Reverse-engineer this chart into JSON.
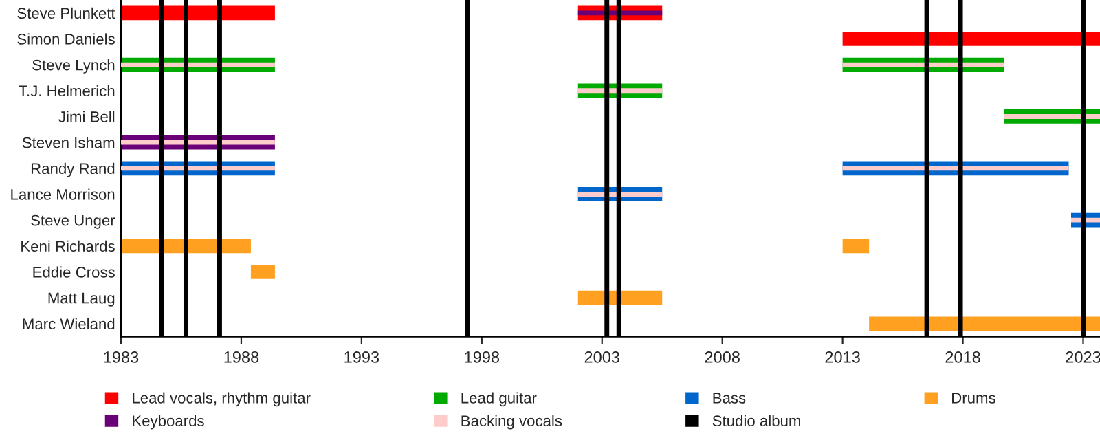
{
  "chart_data": {
    "type": "bar",
    "orientation": "horizontal",
    "categories": [
      "Steve Plunkett",
      "Simon Daniels",
      "Steve Lynch",
      "T.J. Helmerich",
      "Jimi Bell",
      "Steven Isham",
      "Randy Rand",
      "Lance Morrison",
      "Steve Unger",
      "Keni Richards",
      "Eddie Cross",
      "Matt Laug",
      "Marc Wieland"
    ],
    "series": [
      {
        "name": "Lead vocals, rhythm guitar",
        "color": "#ff0000",
        "base": [
          1983,
          2013,
          null,
          null,
          null,
          null,
          null,
          null,
          null,
          null,
          null,
          null,
          null
        ],
        "values": [
          6.4,
          10.7,
          null,
          null,
          null,
          null,
          null,
          null,
          null,
          null,
          null,
          null,
          null
        ]
      },
      {
        "color": "#ff0000",
        "base": [
          2002,
          null,
          null,
          null,
          null,
          null,
          null,
          null,
          null,
          null,
          null,
          null,
          null
        ],
        "values": [
          3.5,
          null,
          null,
          null,
          null,
          null,
          null,
          null,
          null,
          null,
          null,
          null,
          null
        ]
      },
      {
        "name": "Lead guitar",
        "color": "#00aa00",
        "base": [
          null,
          null,
          1983,
          2002,
          2019.7,
          null,
          null,
          null,
          null,
          null,
          null,
          null,
          null
        ],
        "values": [
          null,
          null,
          6.4,
          3.5,
          4.0,
          null,
          null,
          null,
          null,
          null,
          null,
          null,
          null
        ]
      },
      {
        "color": "#00aa00",
        "base": [
          null,
          null,
          2013,
          null,
          null,
          null,
          null,
          null,
          null,
          null,
          null,
          null,
          null
        ],
        "values": [
          null,
          null,
          6.7,
          null,
          null,
          null,
          null,
          null,
          null,
          null,
          null,
          null,
          null
        ]
      },
      {
        "name": "Bass",
        "color": "#0066cc",
        "base": [
          null,
          null,
          null,
          null,
          null,
          null,
          1983,
          2002,
          2022.5,
          null,
          null,
          null,
          null
        ],
        "values": [
          null,
          null,
          null,
          null,
          null,
          null,
          6.4,
          3.5,
          1.2,
          null,
          null,
          null,
          null
        ]
      },
      {
        "color": "#0066cc",
        "base": [
          null,
          null,
          null,
          null,
          null,
          null,
          2013,
          null,
          null,
          null,
          null,
          null,
          null
        ],
        "values": [
          null,
          null,
          null,
          null,
          null,
          null,
          9.4,
          null,
          null,
          null,
          null,
          null,
          null
        ]
      },
      {
        "name": "Drums",
        "color": "#ffa020",
        "base": [
          null,
          null,
          null,
          null,
          null,
          null,
          null,
          null,
          null,
          1983,
          1988.4,
          2002,
          2014.1
        ],
        "values": [
          null,
          null,
          null,
          null,
          null,
          null,
          null,
          null,
          null,
          5.4,
          1.0,
          3.5,
          9.6
        ]
      },
      {
        "color": "#ffa020",
        "base": [
          null,
          null,
          null,
          null,
          null,
          null,
          null,
          null,
          null,
          2013,
          null,
          null,
          null
        ],
        "values": [
          null,
          null,
          null,
          null,
          null,
          null,
          null,
          null,
          null,
          1.1,
          null,
          null,
          null
        ]
      },
      {
        "name": "Keyboards",
        "color": "#6a0077",
        "base": [
          2002,
          null,
          null,
          null,
          null,
          1983,
          null,
          null,
          null,
          null,
          null,
          null,
          null
        ],
        "values": [
          3.5,
          null,
          null,
          null,
          null,
          6.4,
          null,
          null,
          null,
          null,
          null,
          null,
          null
        ]
      },
      {
        "name": "Backing vocals",
        "color": "#ffcccc",
        "base": [
          null,
          null,
          1983,
          2002,
          2019.7,
          1983,
          1983,
          2002,
          2022.5,
          null,
          null,
          null,
          null
        ],
        "values": [
          null,
          null,
          6.4,
          3.5,
          4.0,
          6.4,
          6.4,
          3.5,
          1.2,
          null,
          null,
          null,
          null
        ]
      },
      {
        "color": "#ffcccc",
        "base": [
          null,
          null,
          2013,
          null,
          null,
          null,
          2013,
          null,
          null,
          null,
          null,
          null,
          null
        ],
        "values": [
          null,
          null,
          6.7,
          null,
          null,
          null,
          9.4,
          null,
          null,
          null,
          null,
          null,
          null
        ]
      }
    ],
    "xlim": [
      1983,
      2023.7
    ],
    "xticks": [
      1983,
      1988,
      1993,
      1998,
      2003,
      2008,
      2013,
      2018,
      2023
    ],
    "ref_lines": [
      {
        "axis": "x",
        "value": 1984.7,
        "color": "#000000",
        "label": "Studio album"
      },
      {
        "axis": "x",
        "value": 1985.7,
        "color": "#000000"
      },
      {
        "axis": "x",
        "value": 1987.1,
        "color": "#000000"
      },
      {
        "axis": "x",
        "value": 1997.4,
        "color": "#000000"
      },
      {
        "axis": "x",
        "value": 2003.2,
        "color": "#000000"
      },
      {
        "axis": "x",
        "value": 2003.7,
        "color": "#000000"
      },
      {
        "axis": "x",
        "value": 2016.5,
        "color": "#000000"
      },
      {
        "axis": "x",
        "value": 2017.9,
        "color": "#000000"
      },
      {
        "axis": "x",
        "value": 2023.0,
        "color": "#000000"
      }
    ],
    "legend": "bottom",
    "grid": false
  }
}
